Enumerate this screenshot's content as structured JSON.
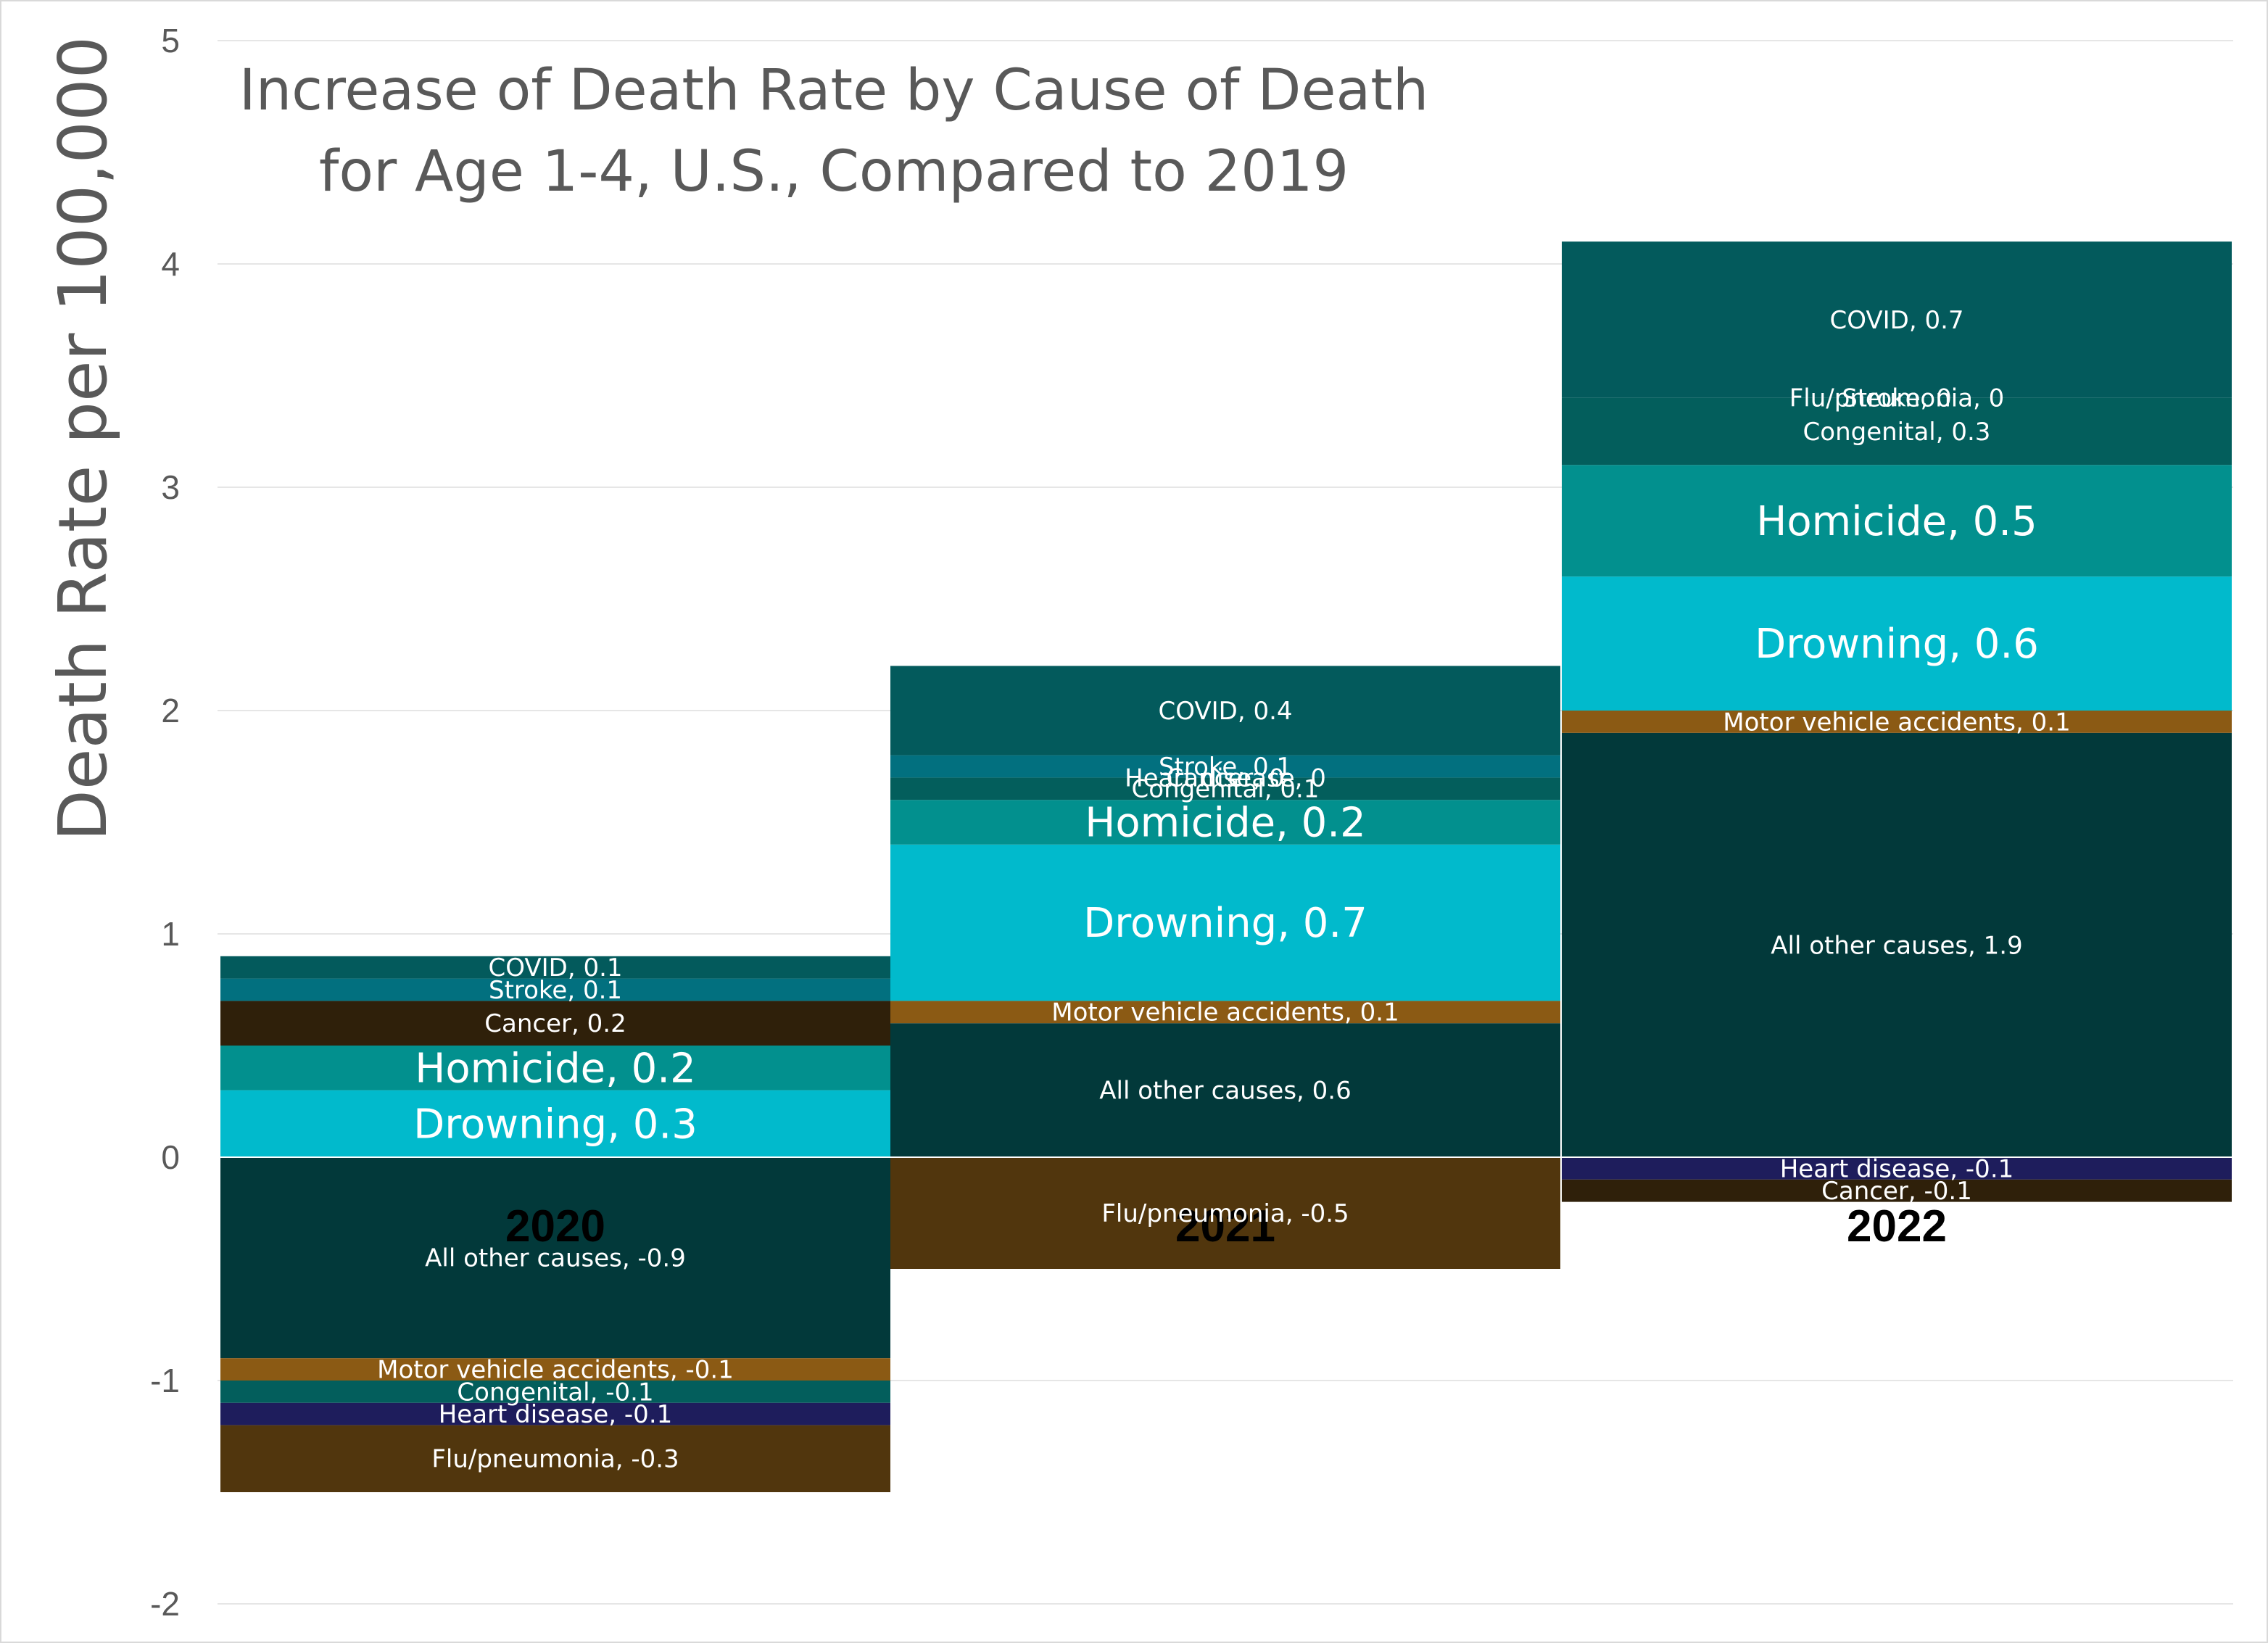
{
  "chart_data": {
    "type": "bar",
    "stacked": true,
    "title_lines": [
      "Increase of Death Rate by Cause of Death",
      "for Age 1-4, U.S., Compared to 2019"
    ],
    "ylabel": "Death Rate per 100,000",
    "xlabel": "",
    "ylim": [
      -2,
      5
    ],
    "yticks": [
      "-2",
      "-1",
      "0",
      "1",
      "2",
      "3",
      "4",
      "5"
    ],
    "categories": [
      "2020",
      "2021",
      "2022"
    ],
    "gridlines": true,
    "legend": "none",
    "colors": {
      "All other causes": "#02393a",
      "Motor vehicle accidents": "#8b5a14",
      "Drowning": "#01bacc",
      "Homicide": "#02908e",
      "Congenital": "#035e5c",
      "Heart disease": "#1e1d5c",
      "Cancer": "#2f200a",
      "Stroke": "#02707f",
      "COVID": "#035a5c",
      "Flu/pneumonia": "#51360d"
    },
    "bars": [
      {
        "category": "2020",
        "positive": [
          {
            "cause": "Drowning",
            "value": 0.3,
            "label": "Drowning, 0.3",
            "size": "large"
          },
          {
            "cause": "Homicide",
            "value": 0.2,
            "label": "Homicide, 0.2",
            "size": "large"
          },
          {
            "cause": "Cancer",
            "value": 0.2,
            "label": "Cancer, 0.2",
            "size": "small"
          },
          {
            "cause": "Stroke",
            "value": 0.1,
            "label": "Stroke, 0.1",
            "size": "small"
          },
          {
            "cause": "COVID",
            "value": 0.1,
            "label": "COVID, 0.1",
            "size": "small"
          }
        ],
        "negative": [
          {
            "cause": "All other causes",
            "value": -0.9,
            "label": "All other causes, -0.9",
            "size": "small"
          },
          {
            "cause": "Motor vehicle accidents",
            "value": -0.1,
            "label": "Motor vehicle accidents, -0.1",
            "size": "small"
          },
          {
            "cause": "Congenital",
            "value": -0.1,
            "label": "Congenital, -0.1",
            "size": "small"
          },
          {
            "cause": "Heart disease",
            "value": -0.1,
            "label": "Heart disease, -0.1",
            "size": "small"
          },
          {
            "cause": "Flu/pneumonia",
            "value": -0.3,
            "label": "Flu/pneumonia, -0.3",
            "size": "small"
          }
        ]
      },
      {
        "category": "2021",
        "positive": [
          {
            "cause": "All other causes",
            "value": 0.6,
            "label": "All other causes, 0.6",
            "size": "small"
          },
          {
            "cause": "Motor vehicle accidents",
            "value": 0.1,
            "label": "Motor vehicle accidents, 0.1",
            "size": "small"
          },
          {
            "cause": "Drowning",
            "value": 0.7,
            "label": "Drowning, 0.7",
            "size": "large"
          },
          {
            "cause": "Homicide",
            "value": 0.2,
            "label": "Homicide, 0.2",
            "size": "large"
          },
          {
            "cause": "Congenital",
            "value": 0.1,
            "label": "Congenital, 0.1",
            "size": "small"
          },
          {
            "cause": "Heart disease",
            "value": 0,
            "label": "Heart disease, 0",
            "size": "small"
          },
          {
            "cause": "Cancer",
            "value": 0,
            "label": "Cancer, 0",
            "size": "small"
          },
          {
            "cause": "Stroke",
            "value": 0.1,
            "label": "Stroke, 0.1",
            "size": "small"
          },
          {
            "cause": "COVID",
            "value": 0.4,
            "label": "COVID, 0.4",
            "size": "small"
          }
        ],
        "negative": [
          {
            "cause": "Flu/pneumonia",
            "value": -0.5,
            "label": "Flu/pneumonia, -0.5",
            "size": "small"
          }
        ]
      },
      {
        "category": "2022",
        "positive": [
          {
            "cause": "All other causes",
            "value": 1.9,
            "label": "All other causes, 1.9",
            "size": "small"
          },
          {
            "cause": "Motor vehicle accidents",
            "value": 0.1,
            "label": "Motor vehicle accidents, 0.1",
            "size": "small"
          },
          {
            "cause": "Drowning",
            "value": 0.6,
            "label": "Drowning, 0.6",
            "size": "large"
          },
          {
            "cause": "Homicide",
            "value": 0.5,
            "label": "Homicide, 0.5",
            "size": "large"
          },
          {
            "cause": "Congenital",
            "value": 0.3,
            "label": "Congenital, 0.3",
            "size": "small"
          },
          {
            "cause": "Stroke",
            "value": 0,
            "label": "Stroke, 0",
            "size": "small"
          },
          {
            "cause": "Flu/pneumonia",
            "value": 0,
            "label": "Flu/pneumonia, 0",
            "size": "small"
          },
          {
            "cause": "COVID",
            "value": 0.7,
            "label": "COVID, 0.7",
            "size": "small"
          }
        ],
        "negative": [
          {
            "cause": "Heart disease",
            "value": -0.1,
            "label": "Heart disease, -0.1",
            "size": "small"
          },
          {
            "cause": "Cancer",
            "value": -0.1,
            "label": "Cancer, -0.1",
            "size": "small"
          }
        ]
      }
    ]
  }
}
